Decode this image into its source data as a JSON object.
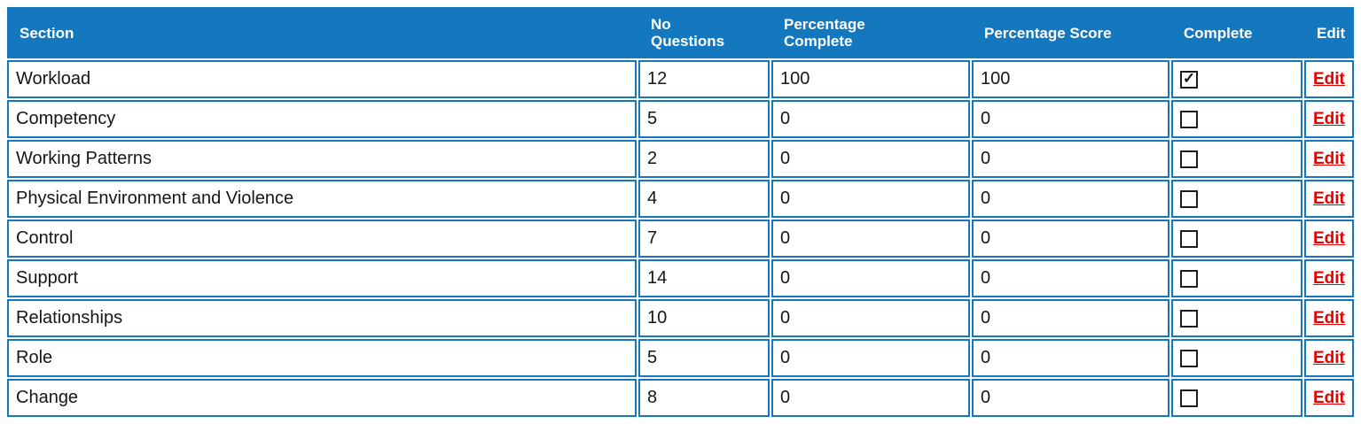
{
  "table": {
    "name": "risk-assessment-sections",
    "columns": [
      {
        "key": "section",
        "label": "Section"
      },
      {
        "key": "no_questions",
        "label": "No\nQuestions"
      },
      {
        "key": "percentage_complete",
        "label": "Percentage\nComplete"
      },
      {
        "key": "percentage_score",
        "label": "Percentage Score"
      },
      {
        "key": "complete",
        "label": "Complete"
      },
      {
        "key": "edit",
        "label": "Edit"
      }
    ],
    "edit_link_label": "Edit",
    "check_mark_glyph": "✓",
    "rows": [
      {
        "section": "Workload",
        "no_questions": "12",
        "percentage_complete": "100",
        "percentage_score": "100",
        "complete": true
      },
      {
        "section": "Competency",
        "no_questions": "5",
        "percentage_complete": "0",
        "percentage_score": "0",
        "complete": false
      },
      {
        "section": "Working Patterns",
        "no_questions": "2",
        "percentage_complete": "0",
        "percentage_score": "0",
        "complete": false
      },
      {
        "section": "Physical Environment and Violence",
        "no_questions": "4",
        "percentage_complete": "0",
        "percentage_score": "0",
        "complete": false
      },
      {
        "section": "Control",
        "no_questions": "7",
        "percentage_complete": "0",
        "percentage_score": "0",
        "complete": false
      },
      {
        "section": "Support",
        "no_questions": "14",
        "percentage_complete": "0",
        "percentage_score": "0",
        "complete": false
      },
      {
        "section": "Relationships",
        "no_questions": "10",
        "percentage_complete": "0",
        "percentage_score": "0",
        "complete": false
      },
      {
        "section": "Role",
        "no_questions": "5",
        "percentage_complete": "0",
        "percentage_score": "0",
        "complete": false
      },
      {
        "section": "Change",
        "no_questions": "8",
        "percentage_complete": "0",
        "percentage_score": "0",
        "complete": false
      }
    ],
    "colors": {
      "header_bg": "#1478BE",
      "border": "#1478BE",
      "edit_link": "#E60000",
      "text": "#161616",
      "row_bg": "#FFFFFF"
    }
  }
}
